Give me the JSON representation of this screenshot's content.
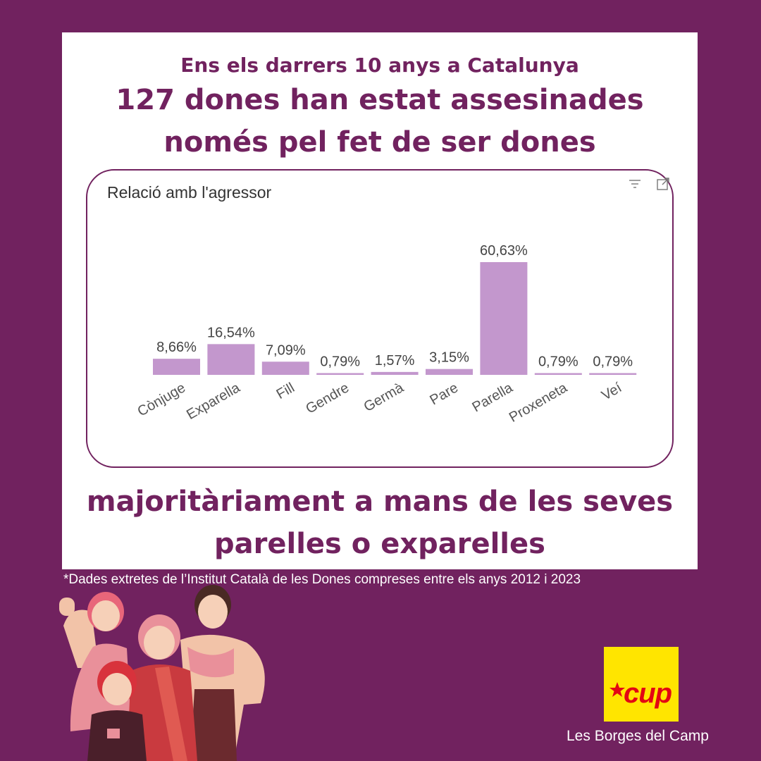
{
  "header": {
    "subtitle": "Ens els darrers 10 anys a Catalunya",
    "headline_line1": "127 dones han estat assesinades",
    "headline_line2": "només pel fet de ser dones"
  },
  "conclusion": {
    "line1": "majoritàriament a mans de les seves",
    "line2": "parelles o exparelles"
  },
  "footnote": "*Dades extretes de l’Institut Català de les Dones compreses entre els anys 2012 i 2023",
  "logo": {
    "text": "cup",
    "caption": "Les Borges del Camp"
  },
  "icons": [
    "filter-icon",
    "expand-icon"
  ],
  "colors": {
    "background": "#71225f",
    "bar": "#c397cd",
    "logo_yellow": "#ffe500",
    "logo_red": "#e30613"
  },
  "chart_data": {
    "type": "bar",
    "title": "Relació amb l'agressor",
    "categories": [
      "Cònjuge",
      "Exparella",
      "Fill",
      "Gendre",
      "Germà",
      "Pare",
      "Parella",
      "Proxeneta",
      "Veí"
    ],
    "values": [
      8.66,
      16.54,
      7.09,
      0.79,
      1.57,
      3.15,
      60.63,
      0.79,
      0.79
    ],
    "data_labels": [
      "8,66%",
      "16,54%",
      "7,09%",
      "0,79%",
      "1,57%",
      "3,15%",
      "60,63%",
      "0,79%",
      "0,79%"
    ],
    "xlabel": "",
    "ylabel": "",
    "ylim": [
      0,
      60.63
    ],
    "grid": false
  }
}
